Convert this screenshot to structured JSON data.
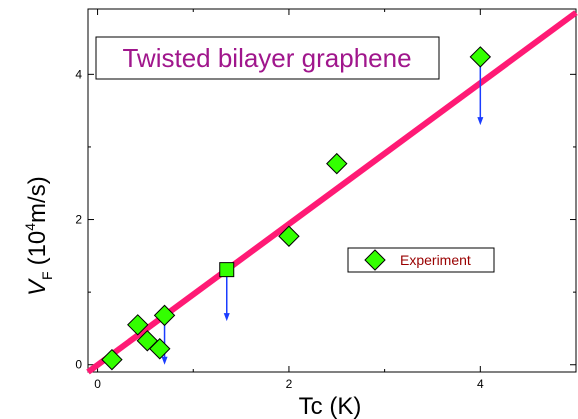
{
  "chart_data": {
    "type": "scatter",
    "title": "Twisted bilayer graphene",
    "xlabel": "Tc (K)",
    "ylabel_main": "V",
    "ylabel_sub": "F",
    "ylabel_paren_open": "(10",
    "ylabel_sup": "4",
    "ylabel_rest": "m/s)",
    "xlim": [
      -0.1,
      5
    ],
    "ylim": [
      -0.1,
      4.9
    ],
    "xticks": [
      0,
      2,
      4
    ],
    "xtick_labels": [
      "0",
      "2",
      "4"
    ],
    "yticks": [
      0,
      2,
      4
    ],
    "ytick_labels": [
      "0",
      "2",
      "4"
    ],
    "series": [
      {
        "name": "Experiment",
        "marker": "diamond",
        "color": "#33ff00",
        "points": [
          {
            "x": 0.15,
            "y": 0.07
          },
          {
            "x": 0.42,
            "y": 0.55
          },
          {
            "x": 0.52,
            "y": 0.33
          },
          {
            "x": 0.65,
            "y": 0.22
          },
          {
            "x": 0.7,
            "y": 0.68
          },
          {
            "x": 2.0,
            "y": 1.77
          },
          {
            "x": 2.5,
            "y": 2.77
          },
          {
            "x": 4.0,
            "y": 4.24
          }
        ]
      },
      {
        "marker": "square",
        "color": "#33ff00",
        "points": [
          {
            "x": 1.35,
            "y": 1.31
          }
        ]
      }
    ],
    "fit_line": {
      "color": "#ff1a75",
      "points": [
        {
          "x": -0.1,
          "y": -0.1
        },
        {
          "x": 5.0,
          "y": 4.85
        }
      ]
    },
    "arrows": [
      {
        "x": 0.7,
        "y_from": 0.62,
        "y_to": 0.0
      },
      {
        "x": 1.35,
        "y_from": 1.25,
        "y_to": 0.6
      },
      {
        "x": 4.0,
        "y_from": 4.18,
        "y_to": 3.3
      }
    ],
    "arrow_color": "#1a3cff",
    "grid": false,
    "legend_position": "center-right",
    "title_color": "#a0168c",
    "legend_text_color": "#990000"
  }
}
